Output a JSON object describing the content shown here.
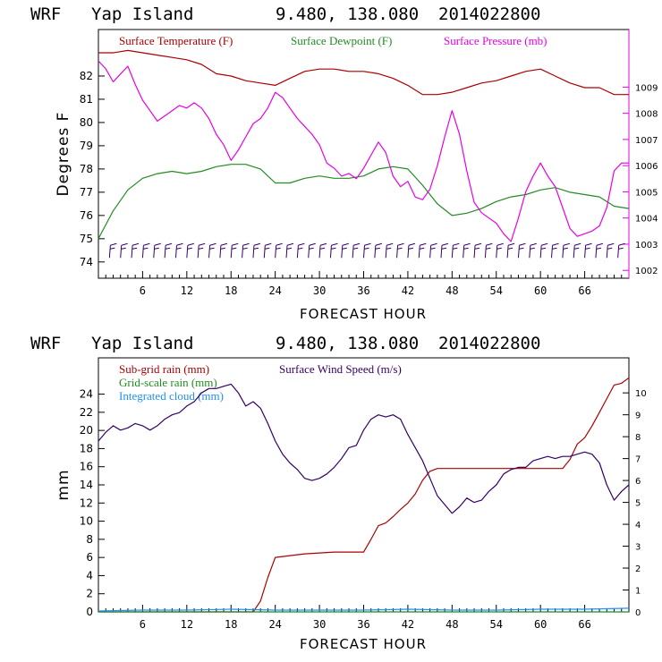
{
  "chart_data": [
    {
      "type": "line",
      "header": {
        "model": "WRF",
        "location": "Yap Island",
        "coords": "9.480, 138.080",
        "date": "2014022800"
      },
      "xlabel": "FORECAST HOUR",
      "ylabel": "Degrees F",
      "xlim": [
        0,
        72
      ],
      "xticks": [
        "6",
        "12",
        "18",
        "24",
        "30",
        "36",
        "42",
        "48",
        "54",
        "60",
        "66"
      ],
      "ylim": [
        73.3,
        84
      ],
      "yticks": [
        "74",
        "75",
        "76",
        "77",
        "78",
        "79",
        "80",
        "81",
        "82"
      ],
      "y2lim": [
        1001.7,
        1011.2
      ],
      "y2ticks": [
        "1002",
        "1003",
        "1004",
        "1005",
        "1006",
        "1007",
        "1008",
        "1009"
      ],
      "legend": [
        "Surface Temperature (F)",
        "Surface Dewpoint (F)",
        "Surface Pressure (mb)"
      ],
      "colors": {
        "temperature": "#aa0000",
        "dewpoint": "#228b22",
        "pressure": "#e600e6",
        "wind_barbs": "#330066",
        "frame": "#000000",
        "right_axis": "#e600e6"
      },
      "series": [
        {
          "name": "Surface Temperature (F)",
          "axis": "left",
          "x": [
            0,
            2,
            4,
            6,
            8,
            10,
            12,
            14,
            16,
            18,
            20,
            22,
            24,
            26,
            28,
            30,
            32,
            34,
            36,
            38,
            40,
            42,
            44,
            46,
            48,
            50,
            52,
            54,
            56,
            58,
            60,
            62,
            64,
            66,
            68,
            70,
            72
          ],
          "y": [
            83.0,
            83.0,
            83.1,
            83.0,
            82.9,
            82.8,
            82.7,
            82.5,
            82.1,
            82.0,
            81.8,
            81.7,
            81.6,
            81.9,
            82.2,
            82.3,
            82.3,
            82.2,
            82.2,
            82.1,
            81.9,
            81.6,
            81.2,
            81.2,
            81.3,
            81.5,
            81.7,
            81.8,
            82.0,
            82.2,
            82.3,
            82.0,
            81.7,
            81.5,
            81.5,
            81.2,
            81.2
          ]
        },
        {
          "name": "Surface Dewpoint (F)",
          "axis": "left",
          "x": [
            0,
            2,
            4,
            6,
            8,
            10,
            12,
            14,
            16,
            18,
            20,
            22,
            24,
            26,
            28,
            30,
            32,
            34,
            36,
            38,
            40,
            42,
            44,
            46,
            48,
            50,
            52,
            54,
            56,
            58,
            60,
            62,
            64,
            66,
            68,
            70,
            72
          ],
          "y": [
            75.0,
            76.2,
            77.1,
            77.6,
            77.8,
            77.9,
            77.8,
            77.9,
            78.1,
            78.2,
            78.2,
            78.0,
            77.4,
            77.4,
            77.6,
            77.7,
            77.6,
            77.6,
            77.7,
            78.0,
            78.1,
            78.0,
            77.3,
            76.5,
            76.0,
            76.1,
            76.3,
            76.6,
            76.8,
            76.9,
            77.1,
            77.2,
            77.0,
            76.9,
            76.8,
            76.4,
            76.3
          ]
        },
        {
          "name": "Surface Pressure (mb)",
          "axis": "right",
          "x": [
            0,
            1,
            2,
            3,
            4,
            5,
            6,
            7,
            8,
            9,
            10,
            11,
            12,
            13,
            14,
            15,
            16,
            17,
            18,
            19,
            20,
            21,
            22,
            23,
            24,
            25,
            26,
            27,
            28,
            29,
            30,
            31,
            32,
            33,
            34,
            35,
            36,
            37,
            38,
            39,
            40,
            41,
            42,
            43,
            44,
            45,
            46,
            47,
            48,
            49,
            50,
            51,
            52,
            53,
            54,
            55,
            56,
            57,
            58,
            59,
            60,
            61,
            62,
            63,
            64,
            65,
            66,
            67,
            68,
            69,
            70,
            71,
            72
          ],
          "y": [
            1010.0,
            1009.7,
            1009.2,
            1009.5,
            1009.8,
            1009.1,
            1008.5,
            1008.1,
            1007.7,
            1007.9,
            1008.1,
            1008.3,
            1008.2,
            1008.4,
            1008.2,
            1007.8,
            1007.2,
            1006.8,
            1006.2,
            1006.6,
            1007.1,
            1007.6,
            1007.8,
            1008.2,
            1008.8,
            1008.6,
            1008.2,
            1007.8,
            1007.5,
            1007.2,
            1006.8,
            1006.1,
            1005.9,
            1005.6,
            1005.7,
            1005.5,
            1005.9,
            1006.4,
            1006.9,
            1006.5,
            1005.6,
            1005.2,
            1005.4,
            1004.8,
            1004.7,
            1005.1,
            1006.0,
            1007.1,
            1008.1,
            1007.2,
            1005.8,
            1004.6,
            1004.2,
            1004.0,
            1003.8,
            1003.4,
            1003.1,
            1004.0,
            1005.0,
            1005.6,
            1006.1,
            1005.6,
            1005.2,
            1004.4,
            1003.6,
            1003.3,
            1003.4,
            1003.5,
            1003.7,
            1004.4,
            1005.8,
            1006.1,
            1006.1
          ]
        }
      ],
      "wind_barbs": {
        "x": [
          1.5,
          3,
          4.5,
          6,
          7.5,
          9,
          10.5,
          12,
          13.5,
          15,
          16.5,
          18,
          19.5,
          21,
          22.5,
          24,
          25.5,
          27,
          28.5,
          30,
          31.5,
          33,
          34.5,
          36,
          37.5,
          39,
          40.5,
          42,
          43.5,
          45,
          46.5,
          48,
          49.5,
          51,
          52.5,
          54,
          55.5,
          57,
          58.5,
          60,
          61.5,
          63,
          64.5,
          66,
          67.5,
          69,
          70.5
        ],
        "level": 74.6
      }
    },
    {
      "type": "line",
      "header": {
        "model": "WRF",
        "location": "Yap Island",
        "coords": "9.480, 138.080",
        "date": "2014022800"
      },
      "xlabel": "FORECAST HOUR",
      "ylabel": "mm",
      "xlim": [
        0,
        72
      ],
      "xticks": [
        "6",
        "12",
        "18",
        "24",
        "30",
        "36",
        "42",
        "48",
        "54",
        "60",
        "66"
      ],
      "ylim": [
        0,
        28
      ],
      "yticks": [
        "0",
        "2",
        "4",
        "6",
        "8",
        "10",
        "12",
        "14",
        "16",
        "18",
        "20",
        "22",
        "24"
      ],
      "y2lim": [
        0,
        11.6
      ],
      "y2ticks": [
        "0",
        "1",
        "2",
        "3",
        "4",
        "5",
        "6",
        "7",
        "8",
        "9",
        "10"
      ],
      "legend": [
        "Sub-grid rain (mm)",
        "Grid-scale rain (mm)",
        "Integrated cloud (mm)",
        "Surface Wind Speed (m/s)"
      ],
      "colors": {
        "subgrid_rain": "#aa0000",
        "gridscale_rain": "#228b22",
        "cloud": "#1e90ff",
        "wind_speed": "#330066",
        "frame": "#000000"
      },
      "series": [
        {
          "name": "Sub-grid rain (mm)",
          "axis": "left",
          "x": [
            0,
            20,
            21,
            22,
            23,
            24,
            26,
            28,
            30,
            32,
            34,
            36,
            37,
            38,
            39,
            40,
            41,
            42,
            43,
            44,
            45,
            46,
            48,
            50,
            52,
            54,
            56,
            58,
            60,
            62,
            63,
            64,
            65,
            66,
            67,
            68,
            69,
            70,
            71,
            72
          ],
          "y": [
            0,
            0,
            0,
            1.2,
            3.8,
            6.0,
            6.2,
            6.4,
            6.5,
            6.6,
            6.6,
            6.6,
            8.0,
            9.5,
            9.8,
            10.5,
            11.3,
            12.0,
            13.0,
            14.5,
            15.5,
            15.8,
            15.8,
            15.8,
            15.8,
            15.8,
            15.8,
            15.8,
            15.8,
            15.8,
            15.8,
            16.8,
            18.5,
            19.2,
            20.5,
            22.0,
            23.5,
            25.0,
            25.2,
            25.8
          ]
        },
        {
          "name": "Grid-scale rain (mm)",
          "axis": "left",
          "x": [
            0,
            72
          ],
          "y": [
            0,
            0
          ]
        },
        {
          "name": "Integrated cloud (mm)",
          "axis": "left",
          "x": [
            0,
            6,
            12,
            18,
            24,
            30,
            36,
            42,
            48,
            54,
            60,
            66,
            72
          ],
          "y": [
            0.1,
            0.2,
            0.2,
            0.3,
            0.2,
            0.2,
            0.2,
            0.3,
            0.2,
            0.2,
            0.3,
            0.3,
            0.4
          ]
        },
        {
          "name": "Surface Wind Speed (m/s)",
          "axis": "right",
          "x": [
            0,
            1,
            2,
            3,
            4,
            5,
            6,
            7,
            8,
            9,
            10,
            11,
            12,
            13,
            14,
            15,
            16,
            17,
            18,
            19,
            20,
            21,
            22,
            23,
            24,
            25,
            26,
            27,
            28,
            29,
            30,
            31,
            32,
            33,
            34,
            35,
            36,
            37,
            38,
            39,
            40,
            41,
            42,
            43,
            44,
            45,
            46,
            47,
            48,
            49,
            50,
            51,
            52,
            53,
            54,
            55,
            56,
            57,
            58,
            59,
            60,
            61,
            62,
            63,
            64,
            65,
            66,
            67,
            68,
            69,
            70,
            71,
            72
          ],
          "y": [
            7.8,
            8.2,
            8.5,
            8.3,
            8.4,
            8.6,
            8.5,
            8.3,
            8.5,
            8.8,
            9.0,
            9.1,
            9.4,
            9.6,
            10.0,
            10.2,
            10.2,
            10.3,
            10.4,
            10.0,
            9.4,
            9.6,
            9.3,
            8.6,
            7.8,
            7.2,
            6.8,
            6.5,
            6.1,
            6.0,
            6.1,
            6.3,
            6.6,
            7.0,
            7.5,
            7.6,
            8.3,
            8.8,
            9.0,
            8.9,
            9.0,
            8.8,
            8.1,
            7.5,
            6.9,
            6.1,
            5.3,
            4.9,
            4.5,
            4.8,
            5.2,
            5.0,
            5.1,
            5.5,
            5.8,
            6.3,
            6.5,
            6.6,
            6.6,
            6.9,
            7.0,
            7.1,
            7.0,
            7.1,
            7.1,
            7.2,
            7.3,
            7.2,
            6.8,
            5.8,
            5.1,
            5.5,
            5.8
          ]
        }
      ]
    }
  ]
}
